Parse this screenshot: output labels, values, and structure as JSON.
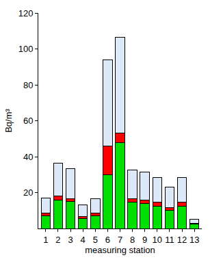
{
  "chart_data": {
    "type": "bar",
    "stacked": true,
    "x_label": "measuring station",
    "y_label": "Bq/m³",
    "categories": [
      "1",
      "2",
      "3",
      "4",
      "5",
      "6",
      "7",
      "8",
      "9",
      "10",
      "11",
      "12",
      "13"
    ],
    "series": [
      {
        "color": "#00e000",
        "values": [
          7,
          16,
          15,
          5.5,
          7,
          30,
          48,
          14.5,
          14,
          12.5,
          10,
          12.5,
          2.5
        ]
      },
      {
        "color": "#ff0000",
        "values": [
          1.5,
          2,
          1.5,
          1,
          1.5,
          16,
          5,
          2,
          2,
          2,
          1.5,
          2,
          0.5
        ]
      },
      {
        "color": "#dde8f8",
        "values": [
          8.5,
          18.5,
          17,
          6.5,
          8,
          48,
          53.5,
          16,
          15.5,
          14,
          11.5,
          14,
          2
        ]
      }
    ],
    "ylim": [
      0,
      120
    ],
    "yticks": [
      20,
      40,
      60,
      80,
      100,
      120
    ],
    "grid": false
  }
}
